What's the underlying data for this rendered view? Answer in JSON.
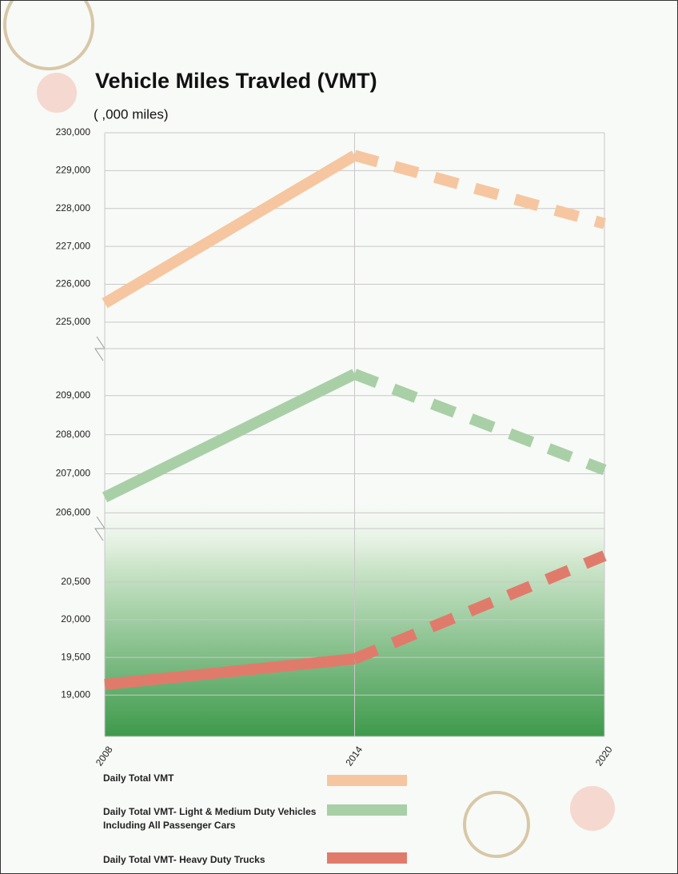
{
  "chart_data": [
    {
      "type": "line",
      "title": "Vehicle Miles Travled  (VMT)",
      "y_label": "( ,000 miles)",
      "series": [
        {
          "name": "Daily Total VMT",
          "color": "#f6c6a0",
          "values": [
            225500,
            229400,
            227600
          ]
        }
      ],
      "ylim": [
        224300,
        230000
      ],
      "yticks": [
        {
          "value": 225000,
          "label": "225,000"
        },
        {
          "value": 226000,
          "label": "226,000"
        },
        {
          "value": 227000,
          "label": "227,000"
        },
        {
          "value": 228000,
          "label": "228,000"
        },
        {
          "value": 229000,
          "label": "229,000"
        },
        {
          "value": 230000,
          "label": "230,000"
        }
      ],
      "grid": true
    },
    {
      "type": "line",
      "series": [
        {
          "name": "Daily Total VMT- Light & Medium Duty Vehicles Including All Passenger Cars",
          "color": "#a9cfa7",
          "values": [
            206400,
            209550,
            207100
          ]
        }
      ],
      "ylim": [
        205600,
        210200
      ],
      "yticks": [
        {
          "value": 206000,
          "label": "206,000"
        },
        {
          "value": 207000,
          "label": "207,000"
        },
        {
          "value": 208000,
          "label": "208,000"
        },
        {
          "value": 209000,
          "label": "209,000"
        }
      ],
      "grid": true
    },
    {
      "type": "line",
      "series": [
        {
          "name": "Daily Total VMT- Heavy Duty Trucks",
          "color": "#e07b6b",
          "values": [
            19140,
            19480,
            20850
          ]
        }
      ],
      "ylim": [
        18450,
        21210
      ],
      "yticks": [
        {
          "value": 19000,
          "label": "19,000"
        },
        {
          "value": 19500,
          "label": "19,500"
        },
        {
          "value": 20000,
          "label": "20,000"
        },
        {
          "value": 20500,
          "label": "20,500"
        }
      ],
      "x": [
        2008,
        2014,
        2020
      ],
      "xlim": [
        2008,
        2020
      ],
      "xticks": [
        2008,
        2014,
        2020
      ],
      "grid": true
    }
  ]
}
